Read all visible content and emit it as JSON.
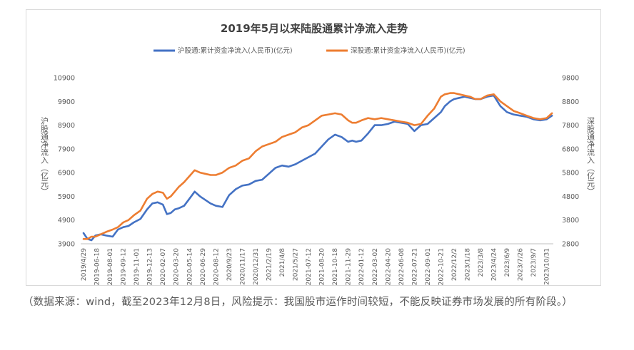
{
  "chart_data": {
    "type": "line",
    "title": "2019年5月以来陆股通累计净流入走势",
    "y_left_label": "沪股通净流入（亿元）",
    "y_right_label": "深股通净流入（亿元）",
    "y_left_range": [
      3900,
      10900
    ],
    "y_left_ticks": [
      "3900",
      "4900",
      "5900",
      "6900",
      "7900",
      "8900",
      "9900",
      "10900"
    ],
    "y_right_range": [
      2800,
      9800
    ],
    "y_right_ticks": [
      "2800",
      "3800",
      "4800",
      "5800",
      "6800",
      "7800",
      "8800",
      "9800"
    ],
    "x_tick_labels": [
      "2019/4/29",
      "2019-06-18",
      "2019-08-01",
      "2019-09-12",
      "2019-11-01",
      "2019-12-13",
      "2020-02-07",
      "2020-03-20",
      "2020-05-14",
      "2020-06-29",
      "2020-08-12",
      "2020/9/23",
      "2020/11/17",
      "2020/12/31",
      "2021/2/19",
      "2021/4/8",
      "2021/5/27",
      "2021-07-12",
      "2021-08-20",
      "2021-10-18",
      "2021-11-29",
      "2022-01-12",
      "2022-03-02",
      "2022-04-20",
      "2022-06-08",
      "2022-07-21",
      "2022-09-01",
      "2022-10-21",
      "2022/12/2",
      "2023/1/18",
      "2023/3/8",
      "2023/4/24",
      "2023/6/9",
      "2023/7/26",
      "2023/9/7",
      "2023/10/31"
    ],
    "series": [
      {
        "name": "沪股通:累计资金净流入(人民币)(亿元)",
        "axis": "left",
        "color": "#4472C4",
        "x": [
          0,
          0.3,
          0.6,
          0.9,
          1.3,
          1.7,
          2.2,
          2.6,
          3.0,
          3.4,
          3.8,
          4.3,
          4.8,
          5.2,
          5.6,
          6.0,
          6.3,
          6.6,
          6.9,
          7.2,
          7.6,
          8.0,
          8.4,
          8.8,
          9.2,
          9.6,
          10.0,
          10.5,
          11.0,
          11.5,
          12.0,
          12.5,
          13.0,
          13.5,
          14.0,
          14.5,
          15.0,
          15.5,
          16.0,
          16.5,
          17.0,
          17.5,
          18.0,
          18.5,
          19.0,
          19.5,
          20.0,
          20.3,
          20.6,
          21.0,
          21.5,
          22.0,
          22.5,
          23.0,
          23.5,
          24.0,
          24.5,
          25.0,
          25.5,
          26.0,
          26.5,
          27.0,
          27.3,
          27.7,
          28.0,
          28.4,
          28.8,
          29.2,
          29.6,
          30.0,
          30.5,
          31.0,
          31.5,
          32.0,
          32.5,
          33.0,
          33.5,
          34.0,
          34.5,
          35.0,
          35.4
        ],
        "values": [
          4350,
          4100,
          4050,
          4250,
          4300,
          4250,
          4200,
          4500,
          4600,
          4650,
          4800,
          4950,
          5350,
          5600,
          5650,
          5550,
          5150,
          5200,
          5350,
          5400,
          5500,
          5800,
          6100,
          5900,
          5750,
          5600,
          5500,
          5450,
          5950,
          6200,
          6350,
          6400,
          6550,
          6600,
          6850,
          7100,
          7200,
          7150,
          7250,
          7400,
          7550,
          7700,
          8000,
          8300,
          8500,
          8400,
          8200,
          8250,
          8200,
          8250,
          8550,
          8900,
          8900,
          8950,
          9050,
          9000,
          8950,
          8650,
          8900,
          8950,
          9200,
          9450,
          9700,
          9900,
          10000,
          10050,
          10100,
          10050,
          10000,
          10000,
          10100,
          10150,
          9700,
          9450,
          9350,
          9300,
          9250,
          9150,
          9100,
          9150,
          9300
        ]
      },
      {
        "name": "深股通:累计资金净流入(人民币)(亿元)",
        "axis": "right",
        "color": "#ED7D31",
        "x": [
          0,
          0.3,
          0.6,
          0.9,
          1.3,
          1.7,
          2.2,
          2.6,
          3.0,
          3.4,
          3.8,
          4.3,
          4.8,
          5.2,
          5.6,
          6.0,
          6.3,
          6.6,
          6.9,
          7.2,
          7.6,
          8.0,
          8.4,
          8.8,
          9.2,
          9.6,
          10.0,
          10.5,
          11.0,
          11.5,
          12.0,
          12.5,
          13.0,
          13.5,
          14.0,
          14.5,
          15.0,
          15.5,
          16.0,
          16.5,
          17.0,
          17.5,
          18.0,
          18.5,
          19.0,
          19.5,
          20.0,
          20.3,
          20.6,
          21.0,
          21.5,
          22.0,
          22.5,
          23.0,
          23.5,
          24.0,
          24.5,
          25.0,
          25.5,
          26.0,
          26.5,
          27.0,
          27.3,
          27.7,
          28.0,
          28.4,
          28.8,
          29.2,
          29.6,
          30.0,
          30.5,
          31.0,
          31.5,
          32.0,
          32.5,
          33.0,
          33.5,
          34.0,
          34.5,
          35.0,
          35.4
        ],
        "values": [
          3000,
          3000,
          3100,
          3100,
          3200,
          3300,
          3400,
          3500,
          3700,
          3800,
          4000,
          4200,
          4700,
          4900,
          5000,
          4950,
          4700,
          4800,
          5000,
          5200,
          5400,
          5650,
          5900,
          5800,
          5750,
          5700,
          5700,
          5800,
          6000,
          6100,
          6300,
          6400,
          6700,
          6900,
          7000,
          7100,
          7300,
          7400,
          7500,
          7700,
          7800,
          8000,
          8200,
          8250,
          8300,
          8250,
          8000,
          7900,
          7900,
          8000,
          8100,
          8050,
          8100,
          8050,
          8000,
          7950,
          7900,
          7800,
          7850,
          8200,
          8500,
          9000,
          9100,
          9150,
          9150,
          9100,
          9050,
          9000,
          8900,
          8900,
          9050,
          9100,
          8800,
          8600,
          8400,
          8300,
          8200,
          8100,
          8050,
          8100,
          8300
        ]
      }
    ],
    "grid": false,
    "legend_position": "top"
  },
  "caption": "（数据来源：wind，截至2023年12月8日，风险提示：我国股市运作时间较短，不能反映证券市场发展的所有阶段。）"
}
